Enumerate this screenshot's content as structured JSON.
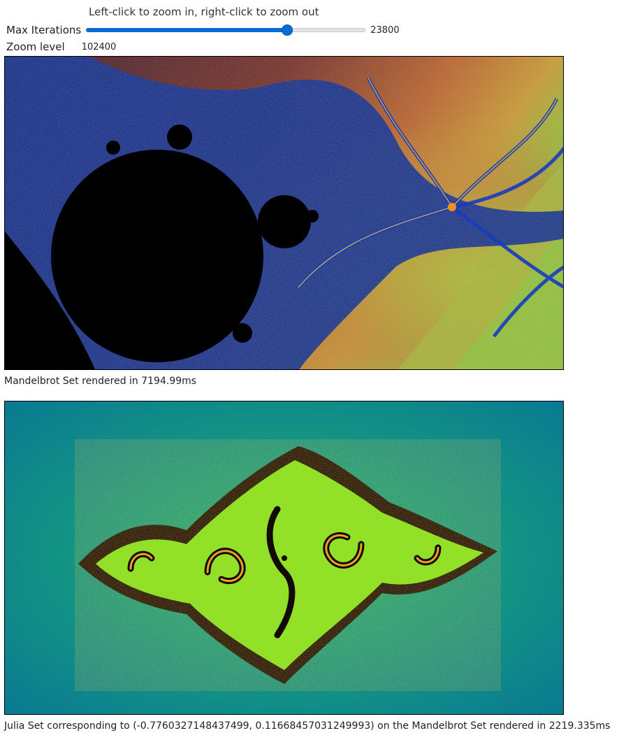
{
  "hint_text": "Left-click to zoom in, right-click to zoom out",
  "controls": {
    "max_iterations_label": "Max Iterations",
    "max_iterations_value": "23800",
    "slider_fraction": 0.72,
    "zoom_label": "Zoom level",
    "zoom_value": "102400"
  },
  "mandelbrot": {
    "caption": "Mandelbrot Set rendered in 7194.99ms"
  },
  "julia": {
    "caption": "Julia Set corresponding to (-0.7760327148437499, 0.11668457031249993) on the Mandelbrot Set rendered in 2219.335ms"
  },
  "colors": {
    "slider_accent": "#0a6bd6",
    "mandel_background": "#5a1606",
    "julia_background": "#0c7f90"
  }
}
